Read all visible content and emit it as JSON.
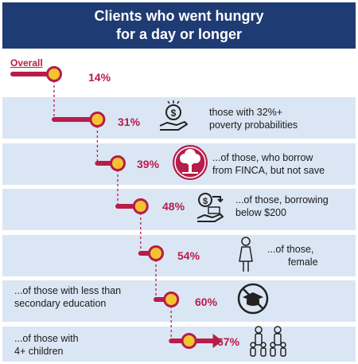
{
  "header": {
    "title_line1": "Clients who went hungry",
    "title_line2": "for a day or longer"
  },
  "colors": {
    "header_bg": "#1f3b73",
    "row_bg": "#dbe6f4",
    "accent": "#b71c4b",
    "dot_fill": "#f4c430"
  },
  "chart_data": {
    "type": "bar",
    "title": "Clients who went hungry for a day or longer",
    "categories": [
      "Overall",
      "those with 32%+ poverty probabilities",
      "...of those, who borrow from FINCA, but not save",
      "...of those, borrowing below $200",
      "...of those, female",
      "...of those with less than secondary education",
      "...of those with 4+ children"
    ],
    "values": [
      14,
      31,
      39,
      48,
      54,
      60,
      67
    ],
    "unit": "%"
  },
  "rows": [
    {
      "value_label": "14%",
      "label": "Overall",
      "desc_lines": [],
      "icon": ""
    },
    {
      "value_label": "31%",
      "desc_lines": [
        "those with 32%+",
        "poverty probabilities"
      ],
      "icon": "money-hand-icon"
    },
    {
      "value_label": "39%",
      "desc_lines": [
        "...of those, who borrow",
        "from FINCA, but not save"
      ],
      "icon": "finca-tree-icon"
    },
    {
      "value_label": "48%",
      "desc_lines": [
        "...of those, borrowing",
        "below $200"
      ],
      "icon": "small-loan-icon"
    },
    {
      "value_label": "54%",
      "desc_lines": [
        "...of those,",
        "female"
      ],
      "icon": "female-icon"
    },
    {
      "value_label": "60%",
      "desc_lines": [
        "...of those with less than",
        "secondary education"
      ],
      "icon": "no-education-icon"
    },
    {
      "value_label": "67%",
      "desc_lines": [
        "...of those with",
        "4+ children"
      ],
      "icon": "family-icon"
    }
  ]
}
